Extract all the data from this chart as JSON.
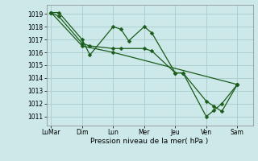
{
  "xlabel": "Pression niveau de la mer( hPa )",
  "bg_color": "#cce8e8",
  "grid_color": "#aacccc",
  "line_color": "#1a5c1a",
  "yticks": [
    1011,
    1012,
    1013,
    1014,
    1015,
    1016,
    1017,
    1018,
    1019
  ],
  "ylim": [
    1010.3,
    1019.7
  ],
  "xtick_labels": [
    "LuMar",
    "Dim",
    "Lun",
    "Mer",
    "Jeu",
    "Ven",
    "Sam"
  ],
  "xtick_positions": [
    0,
    2,
    4,
    6,
    8,
    10,
    12
  ],
  "xlim": [
    -0.3,
    13.0
  ],
  "series1_x": [
    0,
    0.5,
    2,
    2.5,
    4,
    4.5,
    5.0,
    6,
    6.5,
    8,
    8.5,
    10,
    10.5,
    11.0,
    12
  ],
  "series1_y": [
    1019.1,
    1019.1,
    1017.0,
    1015.8,
    1018.0,
    1017.8,
    1016.9,
    1018.0,
    1017.5,
    1014.4,
    1014.4,
    1011.0,
    1011.5,
    1012.0,
    1013.5
  ],
  "series2_x": [
    0,
    0.5,
    2,
    2.5,
    4,
    4.5,
    6,
    6.5,
    8,
    8.5,
    10,
    10.5,
    11.0,
    12
  ],
  "series2_y": [
    1019.1,
    1018.8,
    1016.7,
    1016.5,
    1016.3,
    1016.3,
    1016.3,
    1016.1,
    1014.4,
    1014.4,
    1012.2,
    1011.8,
    1011.4,
    1013.5
  ],
  "series3_x": [
    0,
    2,
    4,
    12
  ],
  "series3_y": [
    1019.1,
    1016.5,
    1016.0,
    1013.5
  ],
  "marker_size": 2.5,
  "linewidth": 0.9
}
